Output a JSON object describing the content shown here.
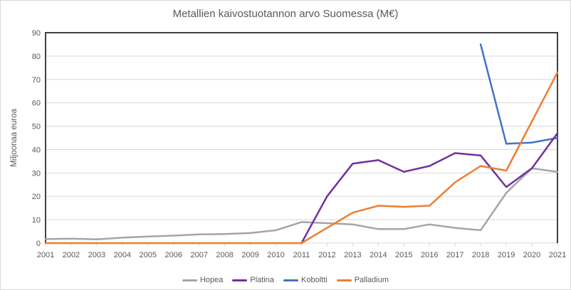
{
  "chart_data": {
    "type": "line",
    "title": "Metallien kaivostuotannon arvo Suomessa (M€)",
    "ylabel": "Miljoonaa euroa",
    "xlabel": "",
    "ylim": [
      0,
      90
    ],
    "ytick_step": 10,
    "grid": true,
    "legend_position": "bottom",
    "categories": [
      2001,
      2002,
      2003,
      2004,
      2005,
      2006,
      2007,
      2008,
      2009,
      2010,
      2011,
      2012,
      2013,
      2014,
      2015,
      2016,
      2017,
      2018,
      2019,
      2020,
      2021
    ],
    "series": [
      {
        "name": "Hopea",
        "color": "#A5A5A5",
        "values": [
          1.7,
          1.9,
          1.6,
          2.3,
          2.8,
          3.2,
          3.7,
          3.9,
          4.3,
          5.5,
          9,
          8.5,
          8,
          6,
          6,
          8,
          6.5,
          5.5,
          21.5,
          32,
          30.5
        ]
      },
      {
        "name": "Platina",
        "color": "#7030A0",
        "values": [
          null,
          null,
          null,
          null,
          null,
          null,
          null,
          null,
          null,
          null,
          0,
          20,
          34,
          35.5,
          30.5,
          33,
          38.5,
          37.5,
          24,
          32,
          47
        ]
      },
      {
        "name": "Koboltti",
        "color": "#4472C4",
        "values": [
          null,
          null,
          null,
          null,
          null,
          null,
          null,
          null,
          null,
          null,
          null,
          null,
          null,
          null,
          null,
          null,
          null,
          85,
          42.5,
          43,
          45
        ]
      },
      {
        "name": "Palladium",
        "color": "#ED7D31",
        "values": [
          0,
          0,
          0,
          0,
          0,
          0,
          0,
          0,
          0,
          0,
          0,
          6.5,
          13,
          16,
          15.5,
          16,
          26,
          33,
          31,
          52,
          73
        ]
      }
    ],
    "colors": {
      "axis_border": "#404040",
      "gridline": "#d9d9d9",
      "tick": "#d9d9d9",
      "text": "#595959"
    }
  }
}
